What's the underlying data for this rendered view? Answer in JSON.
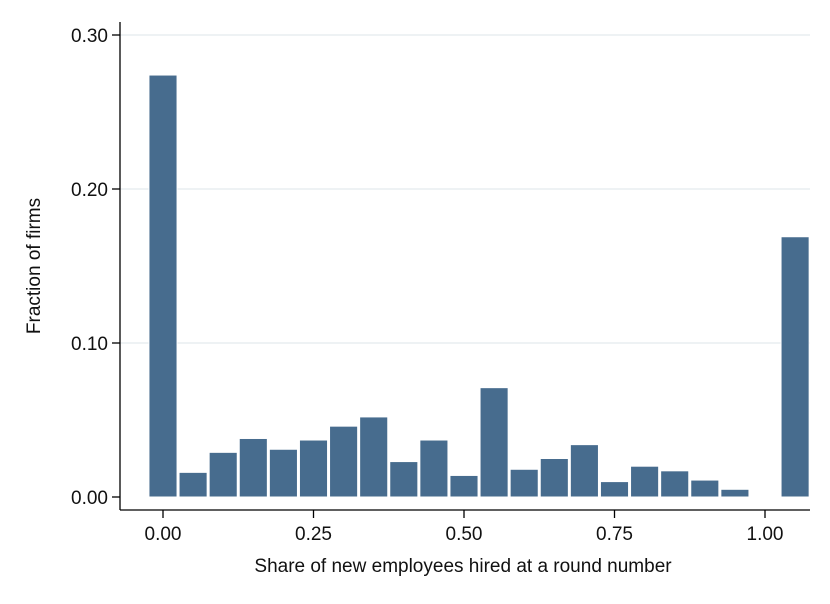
{
  "chart_data": {
    "type": "bar",
    "title": "",
    "xlabel": "Share of new employees hired at a round number",
    "ylabel": "Fraction of firms",
    "xlim": [
      -0.05,
      1.05
    ],
    "ylim": [
      0,
      0.3
    ],
    "bin_width": 0.05,
    "xticks": [
      {
        "value": 0,
        "label": "0.00"
      },
      {
        "value": 0.25,
        "label": "0.25"
      },
      {
        "value": 0.5,
        "label": "0.50"
      },
      {
        "value": 0.75,
        "label": "0.75"
      },
      {
        "value": 1,
        "label": "1.00"
      }
    ],
    "yticks": [
      {
        "value": 0,
        "label": "0.00"
      },
      {
        "value": 0.1,
        "label": "0.10"
      },
      {
        "value": 0.2,
        "label": "0.20"
      },
      {
        "value": 0.3,
        "label": "0.30"
      }
    ],
    "grid": true,
    "colors": {
      "bar": "#476C8E",
      "bar_edge": "#ffffff",
      "grid": "#E4E9EE",
      "axis": "#000000"
    },
    "bins": [
      {
        "x": 0.0,
        "y": 0.274
      },
      {
        "x": 0.05,
        "y": 0.016
      },
      {
        "x": 0.1,
        "y": 0.029
      },
      {
        "x": 0.15,
        "y": 0.038
      },
      {
        "x": 0.2,
        "y": 0.031
      },
      {
        "x": 0.25,
        "y": 0.037
      },
      {
        "x": 0.3,
        "y": 0.046
      },
      {
        "x": 0.35,
        "y": 0.052
      },
      {
        "x": 0.4,
        "y": 0.023
      },
      {
        "x": 0.45,
        "y": 0.037
      },
      {
        "x": 0.5,
        "y": 0.014
      },
      {
        "x": 0.55,
        "y": 0.071
      },
      {
        "x": 0.6,
        "y": 0.018
      },
      {
        "x": 0.65,
        "y": 0.025
      },
      {
        "x": 0.7,
        "y": 0.034
      },
      {
        "x": 0.75,
        "y": 0.01
      },
      {
        "x": 0.8,
        "y": 0.02
      },
      {
        "x": 0.85,
        "y": 0.017
      },
      {
        "x": 0.9,
        "y": 0.011
      },
      {
        "x": 0.95,
        "y": 0.005
      },
      {
        "x": 1.0,
        "y": 0.0
      },
      {
        "x": 1.05,
        "y": 0.169
      }
    ]
  }
}
